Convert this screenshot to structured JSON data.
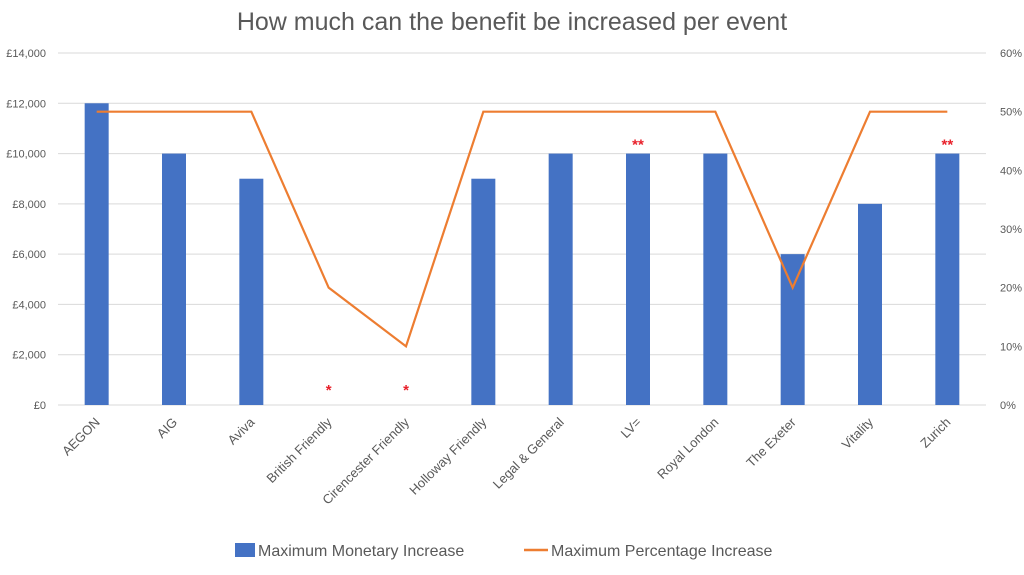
{
  "chart_data": {
    "type": "bar+line",
    "title": "How much can the benefit be increased per event",
    "categories": [
      "AEGON",
      "AIG",
      "Aviva",
      "British Friendly",
      "Cirencester Friendly",
      "Holloway Friendly",
      "Legal & General",
      "LV=",
      "Royal London",
      "The Exeter",
      "Vitality",
      "Zurich"
    ],
    "series": [
      {
        "name": "Maximum Monetary Increase",
        "type": "bar",
        "axis": "left",
        "color": "#4472C4",
        "values": [
          12000,
          10000,
          9000,
          null,
          null,
          9000,
          10000,
          10000,
          10000,
          6000,
          8000,
          10000
        ]
      },
      {
        "name": "Maximum Percentage Increase",
        "type": "line",
        "axis": "right",
        "color": "#ED7D31",
        "values": [
          50,
          50,
          50,
          20,
          10,
          50,
          50,
          50,
          50,
          20,
          50,
          50
        ]
      }
    ],
    "annotations": [
      {
        "category": "British Friendly",
        "text": "*"
      },
      {
        "category": "Cirencester Friendly",
        "text": "*"
      },
      {
        "category": "LV=",
        "text": "**"
      },
      {
        "category": "Zurich",
        "text": "**"
      }
    ],
    "annotation_color": "#E8202A",
    "left_axis": {
      "ylim": [
        0,
        14000
      ],
      "ticks": [
        "£0",
        "£2,000",
        "£4,000",
        "£6,000",
        "£8,000",
        "£10,000",
        "£12,000",
        "£14,000"
      ]
    },
    "right_axis": {
      "ylim": [
        0,
        60
      ],
      "ticks": [
        "0%",
        "10%",
        "20%",
        "30%",
        "40%",
        "50%",
        "60%"
      ]
    },
    "grid": true,
    "legend": "bottom"
  }
}
